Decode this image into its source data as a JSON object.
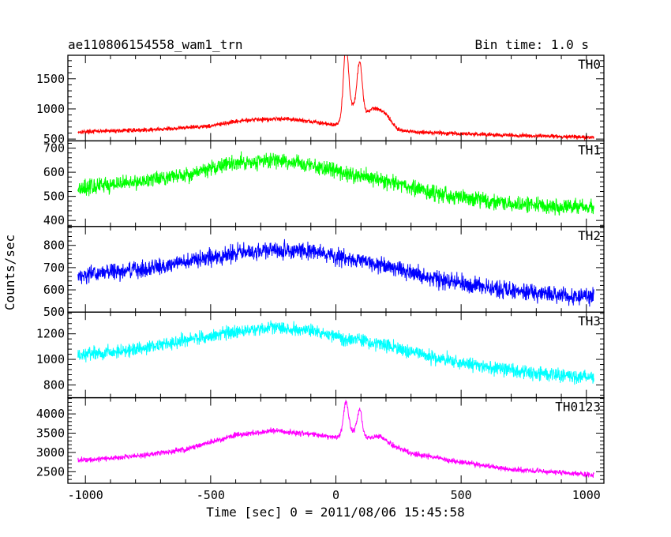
{
  "header": {
    "title": "ae110806154558_wam1_trn",
    "bin_time": "Bin time: 1.0 s"
  },
  "axes": {
    "ylabel": "Counts/sec",
    "xlabel": "Time [sec] 0 = 2011/08/06 15:45:58"
  },
  "chart_data": {
    "type": "line",
    "xlabel": "Time [sec] 0 = 2011/08/06 15:45:58",
    "ylabel": "Counts/sec",
    "xlim": [
      -1070,
      1070
    ],
    "x_ticks": [
      -1000,
      -500,
      0,
      500,
      1000
    ],
    "x_tick_labels": [
      "-1000",
      "-500",
      "0",
      "500",
      "1000"
    ],
    "x_range": [
      -1030,
      1030
    ],
    "grid": false,
    "panels": [
      {
        "name": "TH0",
        "color": "#ff0000",
        "ylim": [
          470,
          1890
        ],
        "y_ticks": [
          500,
          1000,
          1500
        ],
        "y_tick_labels": [
          "500",
          "1000",
          "1500"
        ],
        "noise": 30,
        "baseline": [
          [
            -1030,
            620
          ],
          [
            -700,
            660
          ],
          [
            -500,
            720
          ],
          [
            -350,
            820
          ],
          [
            -200,
            840
          ],
          [
            -100,
            790
          ],
          [
            0,
            730
          ],
          [
            200,
            660
          ],
          [
            300,
            620
          ],
          [
            500,
            590
          ],
          [
            700,
            560
          ],
          [
            1030,
            530
          ]
        ],
        "bumps": [
          [
            40,
            1150,
            10
          ],
          [
            95,
            820,
            10
          ],
          [
            70,
            320,
            28
          ],
          [
            150,
            300,
            30
          ],
          [
            200,
            180,
            25
          ]
        ]
      },
      {
        "name": "TH1",
        "color": "#00ff00",
        "ylim": [
          375,
          730
        ],
        "y_ticks": [
          400,
          500,
          600,
          700
        ],
        "y_tick_labels": [
          "400",
          "500",
          "600",
          "700"
        ],
        "noise": 28,
        "baseline": [
          [
            -1030,
            535
          ],
          [
            -800,
            560
          ],
          [
            -600,
            590
          ],
          [
            -400,
            640
          ],
          [
            -250,
            650
          ],
          [
            -100,
            630
          ],
          [
            0,
            605
          ],
          [
            200,
            565
          ],
          [
            400,
            510
          ],
          [
            600,
            480
          ],
          [
            800,
            460
          ],
          [
            1030,
            450
          ]
        ],
        "bumps": []
      },
      {
        "name": "TH2",
        "color": "#0000ff",
        "ylim": [
          500,
          885
        ],
        "y_ticks": [
          500,
          600,
          700,
          800
        ],
        "y_tick_labels": [
          "500",
          "600",
          "700",
          "800"
        ],
        "noise": 32,
        "baseline": [
          [
            -1030,
            665
          ],
          [
            -800,
            690
          ],
          [
            -600,
            725
          ],
          [
            -400,
            765
          ],
          [
            -250,
            780
          ],
          [
            -100,
            775
          ],
          [
            0,
            750
          ],
          [
            200,
            710
          ],
          [
            400,
            650
          ],
          [
            600,
            610
          ],
          [
            800,
            585
          ],
          [
            1030,
            570
          ]
        ],
        "bumps": []
      },
      {
        "name": "TH3",
        "color": "#00ffff",
        "ylim": [
          700,
          1370
        ],
        "y_ticks": [
          800,
          1000,
          1200
        ],
        "y_tick_labels": [
          "800",
          "1000",
          "1200"
        ],
        "noise": 45,
        "baseline": [
          [
            -1030,
            1030
          ],
          [
            -800,
            1080
          ],
          [
            -600,
            1150
          ],
          [
            -400,
            1220
          ],
          [
            -250,
            1250
          ],
          [
            -100,
            1230
          ],
          [
            0,
            1180
          ],
          [
            200,
            1110
          ],
          [
            400,
            1010
          ],
          [
            600,
            940
          ],
          [
            800,
            890
          ],
          [
            1030,
            860
          ]
        ],
        "bumps": []
      },
      {
        "name": "TH0123",
        "color": "#ff00ff",
        "ylim": [
          2200,
          4420
        ],
        "y_ticks": [
          2500,
          3000,
          3500,
          4000
        ],
        "y_tick_labels": [
          "2500",
          "3000",
          "3500",
          "4000"
        ],
        "noise": 60,
        "baseline": [
          [
            -1030,
            2800
          ],
          [
            -800,
            2900
          ],
          [
            -600,
            3080
          ],
          [
            -400,
            3450
          ],
          [
            -250,
            3560
          ],
          [
            -100,
            3480
          ],
          [
            0,
            3380
          ],
          [
            200,
            3230
          ],
          [
            300,
            2980
          ],
          [
            500,
            2750
          ],
          [
            700,
            2560
          ],
          [
            1030,
            2420
          ]
        ],
        "bumps": [
          [
            40,
            850,
            10
          ],
          [
            95,
            650,
            10
          ],
          [
            70,
            200,
            30
          ],
          [
            170,
            150,
            30
          ]
        ]
      }
    ]
  }
}
